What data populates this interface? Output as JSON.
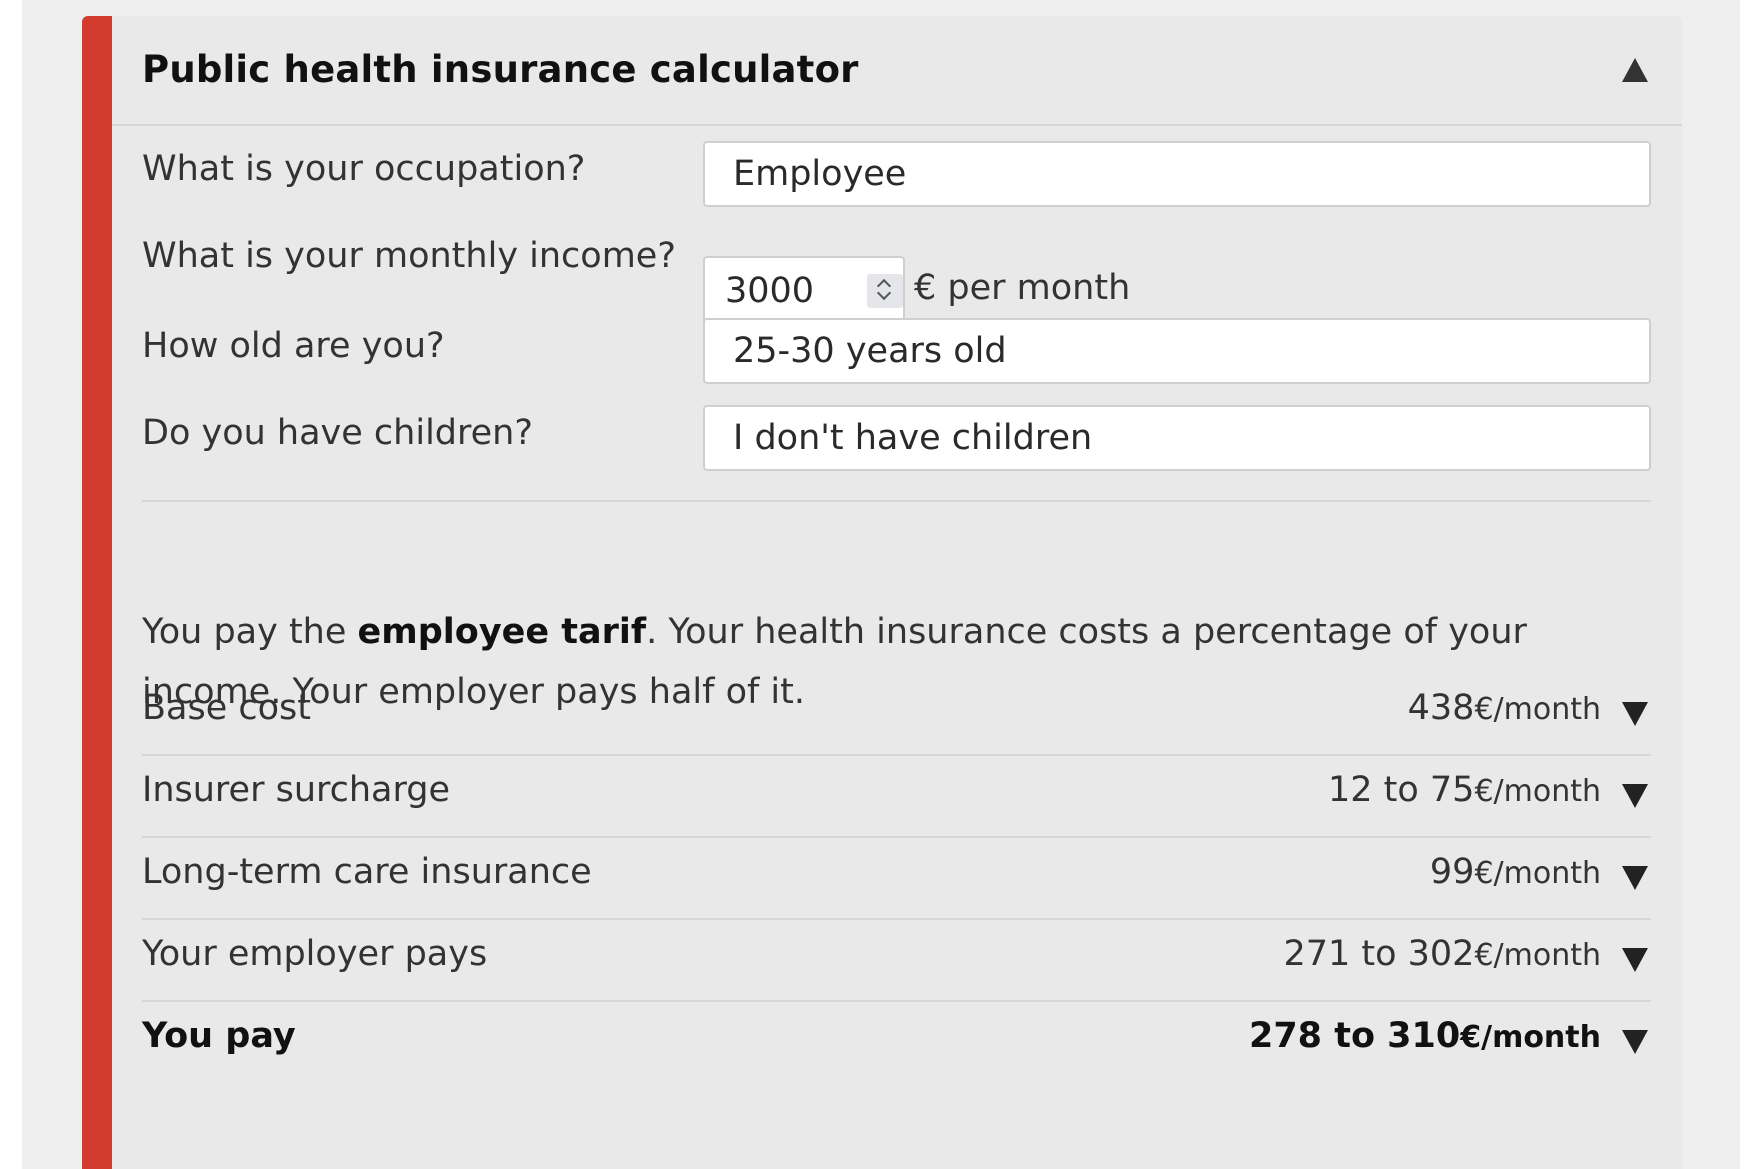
{
  "calculator": {
    "title": "Public health insurance calculator",
    "toggle_icon": "triangle-up-icon"
  },
  "form": {
    "occupation": {
      "label": "What is your occupation?",
      "value": "Employee"
    },
    "income": {
      "label": "What is your monthly income?",
      "value": "3000",
      "unit": "€ per month"
    },
    "age": {
      "label": "How old are you?",
      "value": "25-30 years old"
    },
    "children": {
      "label": "Do you have children?",
      "value": "I don't have children"
    }
  },
  "explanation": {
    "prefix": "You pay the ",
    "tarif": "employee tarif",
    "suffix": ". Your health insurance costs a percentage of your income. Your employer pays half of it."
  },
  "breakdown": {
    "unit": "€/month",
    "toggle_icon": "triangle-down-icon",
    "rows": [
      {
        "label": "Base cost",
        "amount": "438"
      },
      {
        "label": "Insurer surcharge",
        "amount": "12 to 75"
      },
      {
        "label": "Long-term care insurance",
        "amount": "99"
      },
      {
        "label": "Your employer pays",
        "amount": "271 to 302"
      },
      {
        "label": "You pay",
        "amount": "278 to 310"
      }
    ]
  },
  "colors": {
    "accent": "#d23b2e",
    "panel_background": "#e9e9e9",
    "page_background": "#efefef"
  }
}
